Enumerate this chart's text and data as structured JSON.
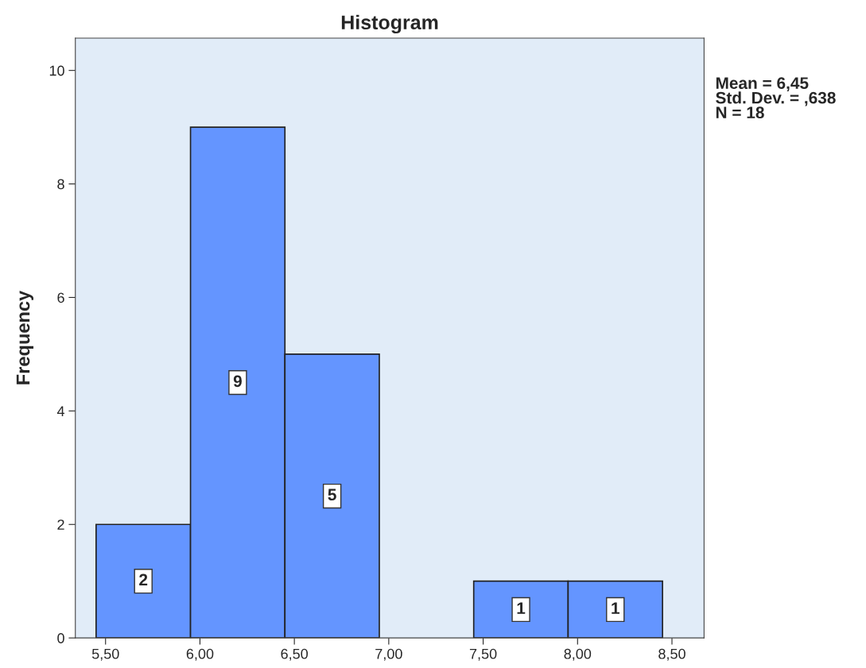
{
  "chart_data": {
    "type": "histogram",
    "title": "Histogram",
    "ylabel": "Frequency",
    "bins": [
      5.45,
      5.95,
      6.45,
      6.95,
      7.45,
      7.95,
      8.45
    ],
    "values": [
      2,
      9,
      5,
      0,
      1,
      1
    ],
    "value_labels": [
      "2",
      "9",
      "5",
      null,
      "1",
      "1"
    ],
    "color": "#6495ff",
    "xlim": [
      5.34,
      8.67
    ],
    "ylim": [
      0,
      10.57
    ],
    "xticks": [
      {
        "value": 5.5,
        "label": "5,50"
      },
      {
        "value": 6.0,
        "label": "6,00"
      },
      {
        "value": 6.5,
        "label": "6,50"
      },
      {
        "value": 7.0,
        "label": "7,00"
      },
      {
        "value": 7.5,
        "label": "7,50"
      },
      {
        "value": 8.0,
        "label": "8,00"
      },
      {
        "value": 8.5,
        "label": "8,50"
      }
    ],
    "yticks": [
      0,
      2,
      4,
      6,
      8,
      10
    ],
    "grid": false,
    "annotations": [
      "Mean = 6,45",
      "Std. Dev. = ,638",
      "N = 18"
    ]
  }
}
